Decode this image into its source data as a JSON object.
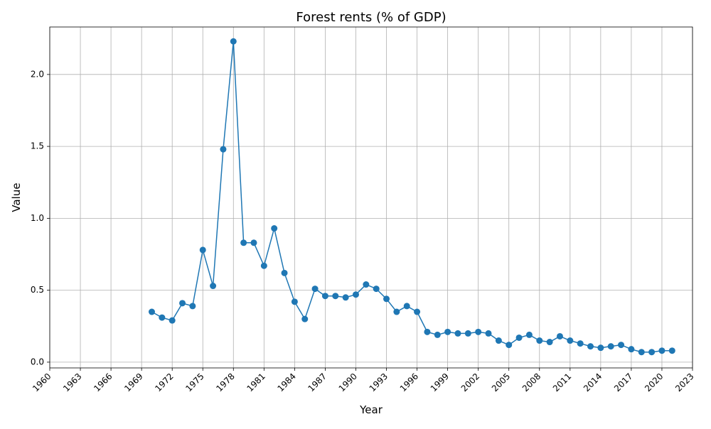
{
  "chart_data": {
    "type": "line",
    "title": "Forest rents (% of GDP)",
    "xlabel": "Year",
    "ylabel": "Value",
    "xlim": [
      1960,
      2023
    ],
    "ylim": [
      -0.04,
      2.33
    ],
    "xticks": [
      1960,
      1963,
      1966,
      1969,
      1972,
      1975,
      1978,
      1981,
      1984,
      1987,
      1990,
      1993,
      1996,
      1999,
      2002,
      2005,
      2008,
      2011,
      2014,
      2017,
      2020,
      2023
    ],
    "xtick_labels": [
      "1960",
      "1963",
      "1966",
      "1969",
      "1972",
      "1975",
      "1978",
      "1981",
      "1984",
      "1987",
      "1990",
      "1993",
      "1996",
      "1999",
      "2002",
      "2005",
      "2008",
      "2011",
      "2014",
      "2017",
      "2020",
      "2023"
    ],
    "yticks": [
      0.0,
      0.5,
      1.0,
      1.5,
      2.0
    ],
    "ytick_labels": [
      "0.0",
      "0.5",
      "1.0",
      "1.5",
      "2.0"
    ],
    "grid": true,
    "legend": "none",
    "colors": {
      "line": "#1f77b4",
      "grid": "#b0b0b0",
      "axis": "#000000"
    },
    "series": [
      {
        "x": [
          1970,
          1971,
          1972,
          1973,
          1974,
          1975,
          1976,
          1977,
          1978,
          1979,
          1980,
          1981,
          1982,
          1983,
          1984,
          1985,
          1986,
          1987,
          1988,
          1989,
          1990,
          1991,
          1992,
          1993,
          1994,
          1995,
          1996,
          1997,
          1998,
          1999,
          2000,
          2001,
          2002,
          2003,
          2004,
          2005,
          2006,
          2007,
          2008,
          2009,
          2010,
          2011,
          2012,
          2013,
          2014,
          2015,
          2016,
          2017,
          2018,
          2019,
          2020,
          2021
        ],
        "values": [
          0.35,
          0.31,
          0.29,
          0.41,
          0.39,
          0.78,
          0.53,
          1.48,
          2.23,
          0.83,
          0.83,
          0.67,
          0.93,
          0.62,
          0.42,
          0.3,
          0.51,
          0.46,
          0.46,
          0.45,
          0.47,
          0.54,
          0.51,
          0.44,
          0.35,
          0.39,
          0.35,
          0.21,
          0.19,
          0.21,
          0.2,
          0.2,
          0.21,
          0.2,
          0.15,
          0.12,
          0.17,
          0.19,
          0.15,
          0.14,
          0.18,
          0.15,
          0.13,
          0.11,
          0.1,
          0.11,
          0.12,
          0.09,
          0.07,
          0.07,
          0.08,
          0.08
        ]
      }
    ]
  }
}
